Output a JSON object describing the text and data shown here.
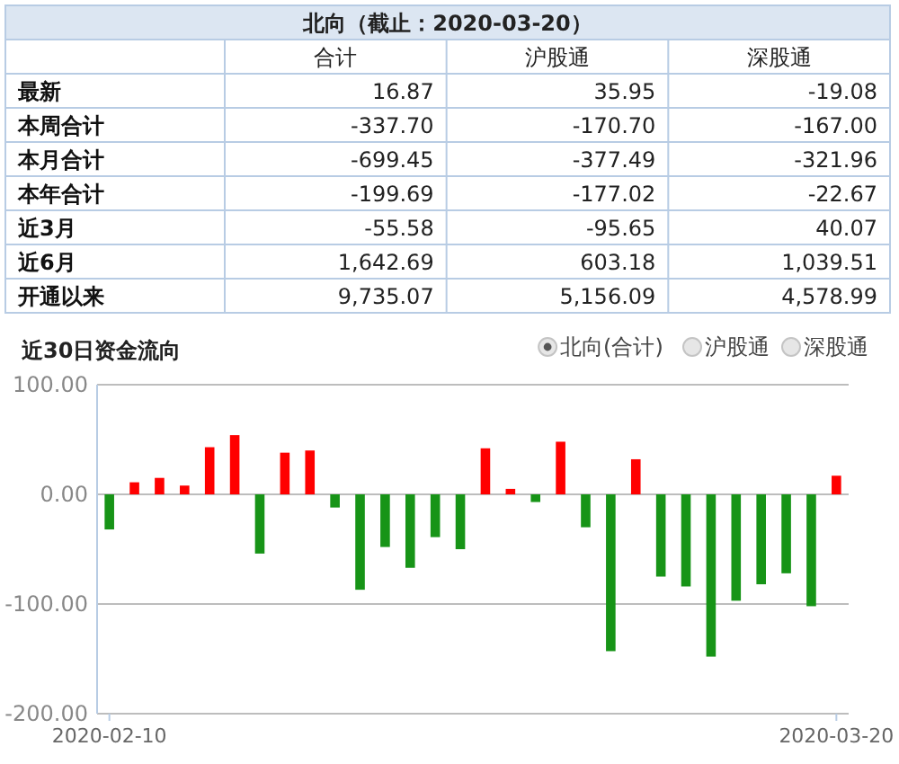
{
  "chart_data": [
    {
      "type": "heatmap",
      "title": "北向（截止：2020-03-20）",
      "categories": [
        "合计",
        "沪股通",
        "深股通"
      ],
      "y_categories": [
        "最新",
        "本周合计",
        "本月合计",
        "本年合计",
        "近3月",
        "近6月",
        "开通以来"
      ],
      "cells": [
        [
          16.87,
          35.95,
          -19.08
        ],
        [
          -337.7,
          -170.7,
          -167.0
        ],
        [
          -699.45,
          -377.49,
          -321.96
        ],
        [
          -199.69,
          -177.02,
          -22.67
        ],
        [
          -55.58,
          -95.65,
          40.07
        ],
        [
          1642.69,
          603.18,
          1039.51
        ],
        [
          9735.07,
          5156.09,
          4578.99
        ]
      ],
      "cell_labels": [
        [
          "16.87",
          "35.95",
          "-19.08"
        ],
        [
          "-337.70",
          "-170.70",
          "-167.00"
        ],
        [
          "-699.45",
          "-377.49",
          "-321.96"
        ],
        [
          "-199.69",
          "-177.02",
          "-22.67"
        ],
        [
          "-55.58",
          "-95.65",
          "40.07"
        ],
        [
          "1,642.69",
          "603.18",
          "1,039.51"
        ],
        [
          "9,735.07",
          "5,156.09",
          "4,578.99"
        ]
      ]
    },
    {
      "type": "bar",
      "title": "近30日资金流向",
      "categories": [
        "2020-02-10",
        null,
        null,
        null,
        null,
        null,
        null,
        null,
        null,
        null,
        null,
        null,
        null,
        null,
        null,
        null,
        null,
        null,
        null,
        null,
        null,
        null,
        null,
        null,
        null,
        null,
        null,
        null,
        null,
        "2020-03-20"
      ],
      "values": [
        -32,
        11,
        15,
        8,
        43,
        54,
        -54,
        38,
        40,
        -12,
        -87,
        -48,
        -67,
        -39,
        -50,
        42,
        5,
        -7,
        48,
        -30,
        -143,
        32,
        -75,
        -84,
        -148,
        -97,
        -82,
        -72,
        -102,
        17
      ],
      "colors": [
        "#179417",
        "#ff0000",
        "#ff0000",
        "#ff0000",
        "#ff0000",
        "#ff0000",
        "#179417",
        "#ff0000",
        "#ff0000",
        "#179417",
        "#179417",
        "#179417",
        "#179417",
        "#179417",
        "#179417",
        "#ff0000",
        "#ff0000",
        "#179417",
        "#ff0000",
        "#179417",
        "#179417",
        "#ff0000",
        "#179417",
        "#179417",
        "#179417",
        "#179417",
        "#179417",
        "#179417",
        "#179417",
        "#ff0000"
      ],
      "ylim": [
        -200,
        100
      ],
      "yticks": [
        {
          "value": 100,
          "label": "100.00"
        },
        {
          "value": 0,
          "label": "0.00"
        },
        {
          "value": -100,
          "label": "-100.00"
        },
        {
          "value": -200,
          "label": "-200.00"
        }
      ],
      "grid": "y",
      "annotations": [
        "北向(合计)",
        "沪股通",
        "深股通"
      ]
    }
  ]
}
